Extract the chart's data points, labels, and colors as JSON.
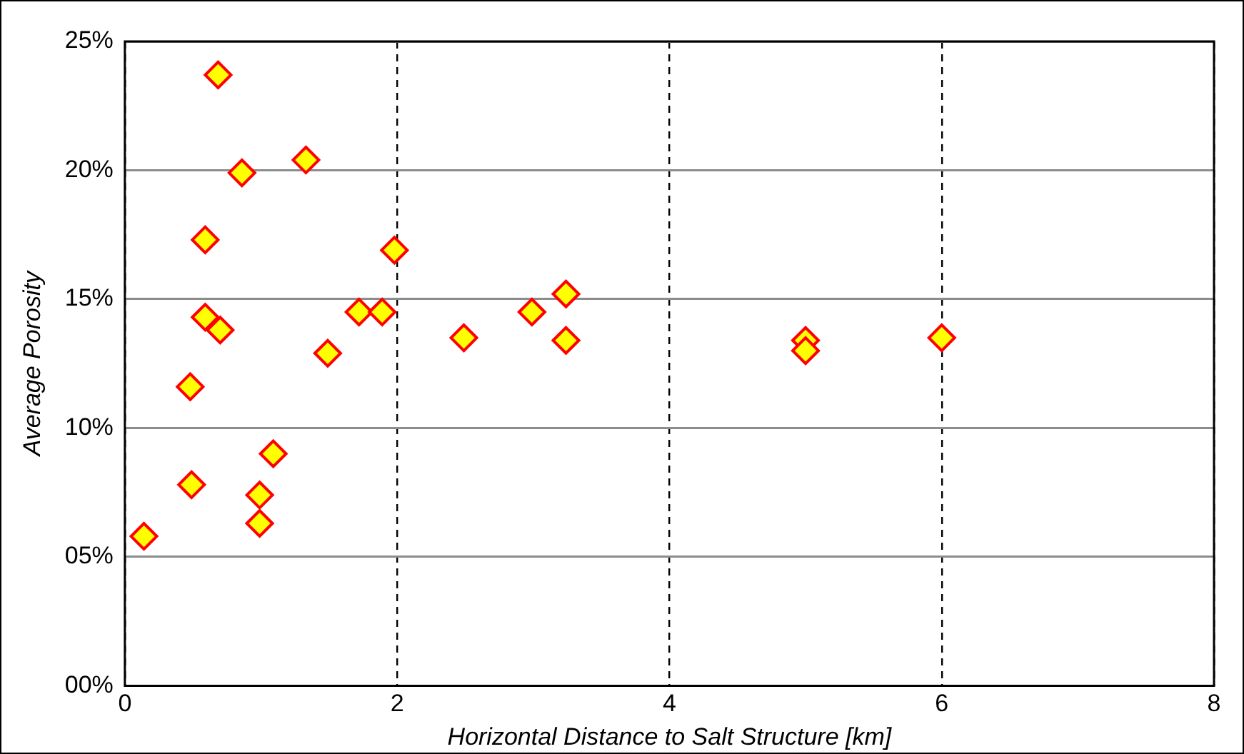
{
  "chart_data": {
    "type": "scatter",
    "xlabel": "Horizontal Distance to Salt Structure [km]",
    "ylabel": "Average Porosity",
    "x": [
      0.14,
      0.49,
      0.48,
      0.685,
      0.59,
      0.59,
      0.7,
      0.86,
      0.99,
      0.99,
      1.09,
      1.33,
      1.49,
      1.72,
      1.89,
      1.98,
      2.49,
      2.99,
      3.24,
      3.24,
      5.0,
      5.0,
      6.0
    ],
    "series": [
      {
        "color": "#ffff00",
        "values": [
          5.8,
          7.8,
          11.6,
          23.7,
          17.3,
          14.3,
          13.8,
          19.9,
          7.4,
          6.3,
          9.0,
          20.4,
          12.9,
          14.5,
          14.5,
          16.9,
          13.5,
          14.5,
          15.2,
          13.4,
          13.4,
          13.0,
          13.5
        ]
      }
    ],
    "xlim": [
      0,
      8
    ],
    "xticks": [
      0,
      2,
      4,
      6,
      8
    ],
    "ylim": [
      0,
      25
    ],
    "yticks": [
      {
        "value": 0,
        "label": "00%"
      },
      {
        "value": 5,
        "label": "05%"
      },
      {
        "value": 10,
        "label": "10%"
      },
      {
        "value": 15,
        "label": "15%"
      },
      {
        "value": 20,
        "label": "20%"
      },
      {
        "value": 25,
        "label": "25%"
      }
    ],
    "grid": true,
    "legend": false,
    "marker": "diamond"
  }
}
